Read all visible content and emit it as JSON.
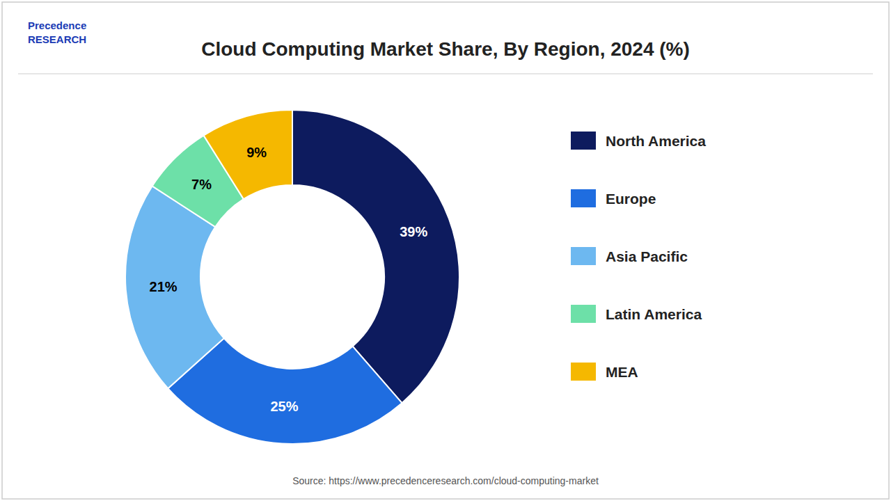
{
  "chart_data": {
    "type": "donut",
    "title": "Cloud Computing Market Share, By Region, 2024 (%)",
    "categories": [
      "North America",
      "Europe",
      "Asia Pacific",
      "Latin America",
      "MEA"
    ],
    "values": [
      39,
      25,
      21,
      7,
      9
    ],
    "value_labels": [
      "39%",
      "25%",
      "21%",
      "7%",
      "9%"
    ],
    "colors": [
      "#0d1b5e",
      "#1f6de0",
      "#6db8f0",
      "#6de0a8",
      "#f5b800"
    ],
    "data_labels": true,
    "legend": "right",
    "annotations": [
      "Precedence",
      "RESEARCH",
      "Source: https://www.precedenceresearch.com/cloud-computing-market"
    ]
  }
}
